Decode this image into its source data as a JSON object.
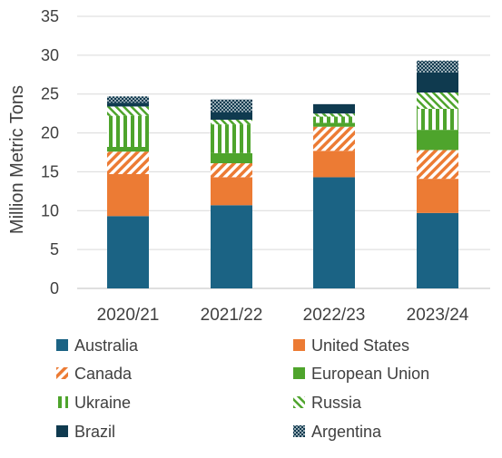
{
  "chart_data": {
    "type": "bar",
    "stacked": true,
    "categories": [
      "2020/21",
      "2021/22",
      "2022/23",
      "2023/24"
    ],
    "ylabel": "Million Metric Tons",
    "xlabel": "",
    "ylim": [
      0,
      35
    ],
    "yticks": [
      0,
      5,
      10,
      15,
      20,
      25,
      30,
      35
    ],
    "grid": true,
    "legend_position": "bottom",
    "series": [
      {
        "name": "Australia",
        "color": "#1b6384",
        "pattern": "solid",
        "values": [
          9.3,
          10.7,
          14.3,
          9.7
        ]
      },
      {
        "name": "United States",
        "color": "#ec7b34",
        "pattern": "solid",
        "values": [
          5.4,
          3.6,
          3.4,
          4.4
        ]
      },
      {
        "name": "Canada",
        "color": "#ec7b34",
        "pattern": "diagonal",
        "values": [
          2.9,
          1.8,
          3.1,
          3.7
        ]
      },
      {
        "name": "European Union",
        "color": "#4ea42c",
        "pattern": "solid",
        "values": [
          0.6,
          1.3,
          0.5,
          2.6
        ]
      },
      {
        "name": "Ukraine",
        "color": "#4ea42c",
        "pattern": "vertical",
        "values": [
          4.0,
          3.7,
          0.8,
          2.7
        ]
      },
      {
        "name": "Russia",
        "color": "#4ea42c",
        "pattern": "diagonal-reverse",
        "values": [
          1.2,
          0.6,
          0.4,
          2.1
        ]
      },
      {
        "name": "Brazil",
        "color": "#0f3a4f",
        "pattern": "solid",
        "values": [
          0.5,
          1.0,
          1.2,
          2.6
        ]
      },
      {
        "name": "Argentina",
        "color": "#0f3a4f",
        "pattern": "dots",
        "values": [
          0.8,
          1.6,
          0.0,
          1.5
        ]
      }
    ]
  }
}
